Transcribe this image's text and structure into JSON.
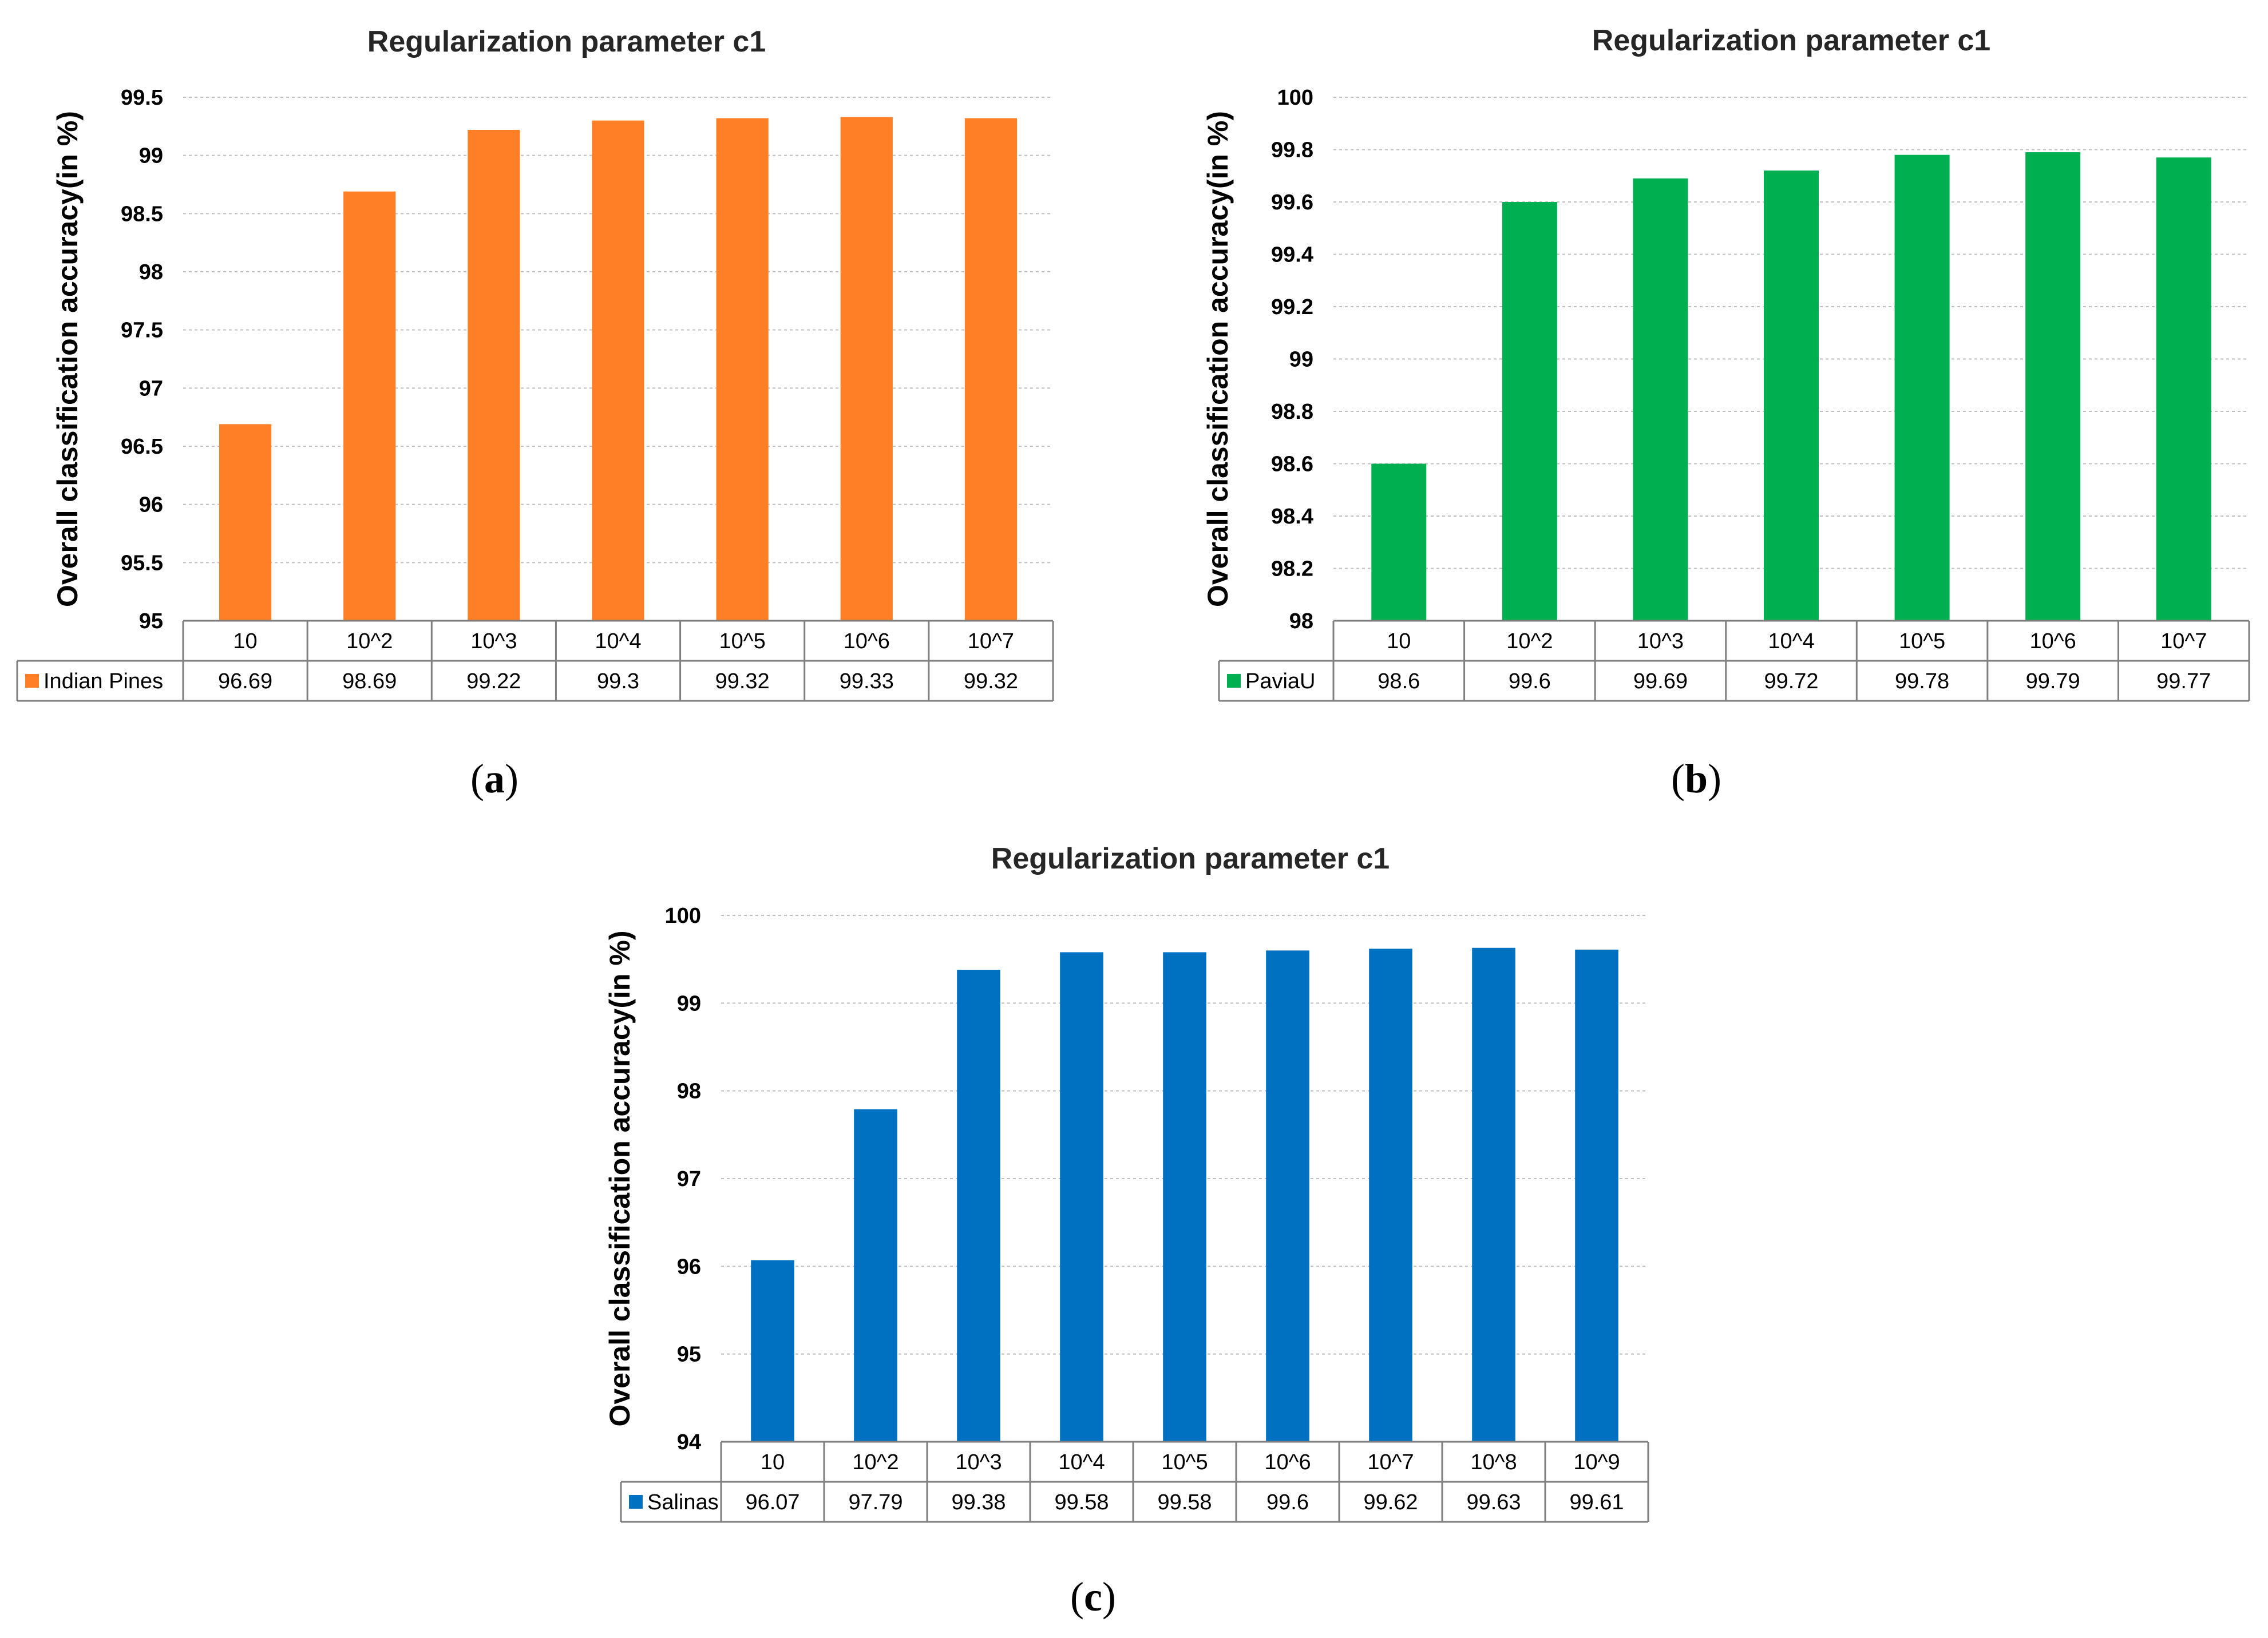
{
  "chart_data": [
    {
      "type": "bar",
      "panel": "a",
      "title": "Regularization parameter c1",
      "ylabel": "Overall classification accuracy(in %)",
      "xlabel": "",
      "categories": [
        "10",
        "10^2",
        "10^3",
        "10^4",
        "10^5",
        "10^6",
        "10^7"
      ],
      "series": [
        {
          "name": "Indian Pines",
          "values": [
            96.69,
            98.69,
            99.22,
            99.3,
            99.32,
            99.33,
            99.32
          ]
        }
      ],
      "value_labels": [
        "96.69",
        "98.69",
        "99.22",
        "99.3",
        "99.32",
        "99.33",
        "99.32"
      ],
      "yticks": [
        "95",
        "95.5",
        "96",
        "96.5",
        "97",
        "97.5",
        "98",
        "98.5",
        "99",
        "99.5"
      ],
      "ylim": [
        95,
        99.5
      ],
      "grid": true,
      "legend": "data-table-left",
      "color": "#FF7F27"
    },
    {
      "type": "bar",
      "panel": "b",
      "title": "Regularization parameter c1",
      "ylabel": "Overall classification accuracy(in %)",
      "xlabel": "",
      "categories": [
        "10",
        "10^2",
        "10^3",
        "10^4",
        "10^5",
        "10^6",
        "10^7"
      ],
      "series": [
        {
          "name": "PaviaU",
          "values": [
            98.6,
            99.6,
            99.69,
            99.72,
            99.78,
            99.79,
            99.77
          ]
        }
      ],
      "value_labels": [
        "98.6",
        "99.6",
        "99.69",
        "99.72",
        "99.78",
        "99.79",
        "99.77"
      ],
      "yticks": [
        "98",
        "98.2",
        "98.4",
        "98.6",
        "98.8",
        "99",
        "99.2",
        "99.4",
        "99.6",
        "99.8",
        "100"
      ],
      "ylim": [
        98,
        100
      ],
      "grid": true,
      "legend": "data-table-left",
      "color": "#00B050"
    },
    {
      "type": "bar",
      "panel": "c",
      "title": "Regularization parameter c1",
      "ylabel": "Overall classification accuracy(in %)",
      "xlabel": "",
      "categories": [
        "10",
        "10^2",
        "10^3",
        "10^4",
        "10^5",
        "10^6",
        "10^7",
        "10^8",
        "10^9"
      ],
      "series": [
        {
          "name": "Salinas",
          "values": [
            96.07,
            97.79,
            99.38,
            99.58,
            99.58,
            99.6,
            99.62,
            99.63,
            99.61
          ]
        }
      ],
      "value_labels": [
        "96.07",
        "97.79",
        "99.38",
        "99.58",
        "99.58",
        "99.6",
        "99.62",
        "99.63",
        "99.61"
      ],
      "yticks": [
        "94",
        "95",
        "96",
        "97",
        "98",
        "99",
        "100"
      ],
      "ylim": [
        94,
        100
      ],
      "grid": true,
      "legend": "data-table-left",
      "color": "#0070C0"
    }
  ],
  "panel_labels": [
    "a",
    "b",
    "c"
  ]
}
